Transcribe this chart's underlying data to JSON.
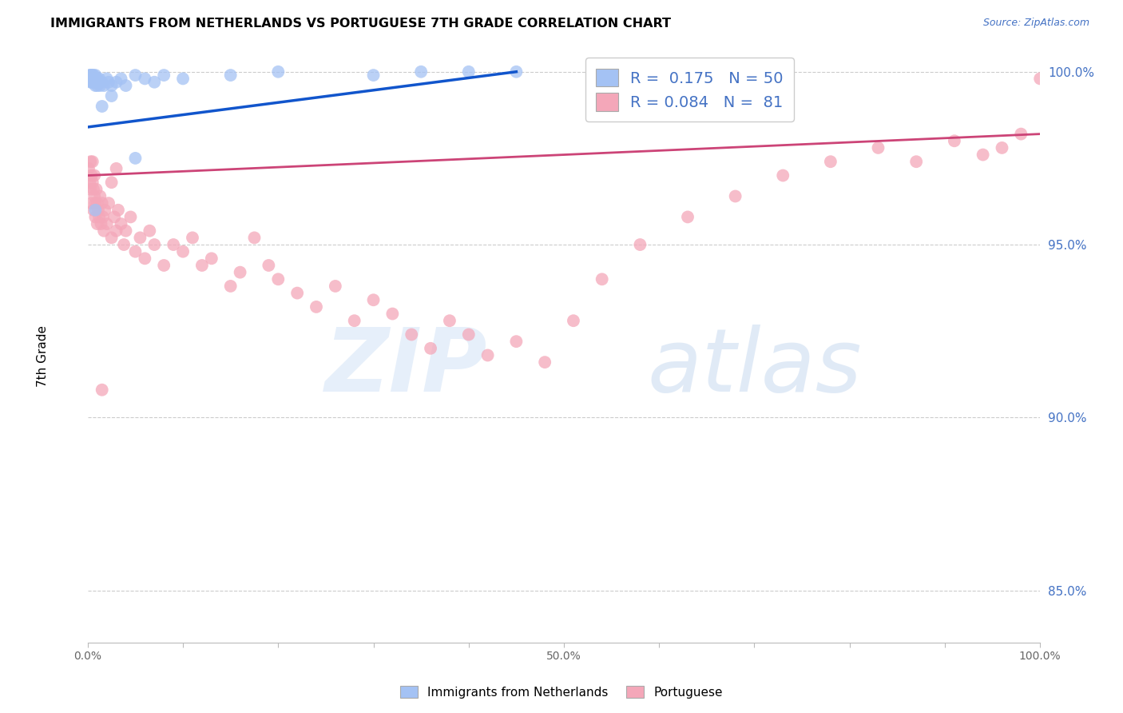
{
  "title": "IMMIGRANTS FROM NETHERLANDS VS PORTUGUESE 7TH GRADE CORRELATION CHART",
  "source": "Source: ZipAtlas.com",
  "ylabel": "7th Grade",
  "xlim": [
    0,
    1.0
  ],
  "ylim": [
    0.835,
    1.008
  ],
  "y_ticks": [
    0.85,
    0.9,
    0.95,
    1.0
  ],
  "y_tick_labels": [
    "85.0%",
    "90.0%",
    "95.0%",
    "100.0%"
  ],
  "x_ticks": [
    0.0,
    0.1,
    0.2,
    0.3,
    0.4,
    0.5,
    0.6,
    0.7,
    0.8,
    0.9,
    1.0
  ],
  "x_tick_labels": [
    "0.0%",
    "",
    "",
    "",
    "",
    "50.0%",
    "",
    "",
    "",
    "",
    "100.0%"
  ],
  "blue_color": "#a4c2f4",
  "pink_color": "#f4a7b9",
  "blue_line_color": "#1155cc",
  "pink_line_color": "#cc4477",
  "legend_R_blue": "0.175",
  "legend_N_blue": "50",
  "legend_R_pink": "0.084",
  "legend_N_pink": "81",
  "blue_x": [
    0.001,
    0.002,
    0.002,
    0.003,
    0.003,
    0.003,
    0.004,
    0.004,
    0.004,
    0.005,
    0.005,
    0.005,
    0.006,
    0.006,
    0.006,
    0.007,
    0.007,
    0.008,
    0.008,
    0.008,
    0.009,
    0.009,
    0.01,
    0.01,
    0.011,
    0.012,
    0.013,
    0.015,
    0.017,
    0.02,
    0.022,
    0.025,
    0.03,
    0.035,
    0.04,
    0.05,
    0.06,
    0.08,
    0.1,
    0.15,
    0.2,
    0.3,
    0.35,
    0.4,
    0.05,
    0.07,
    0.025,
    0.015,
    0.008,
    0.45
  ],
  "blue_y": [
    0.998,
    0.999,
    0.998,
    0.999,
    0.998,
    0.997,
    0.999,
    0.998,
    0.997,
    0.999,
    0.998,
    0.997,
    0.998,
    0.999,
    0.997,
    0.998,
    0.997,
    0.999,
    0.998,
    0.996,
    0.998,
    0.997,
    0.998,
    0.996,
    0.997,
    0.998,
    0.996,
    0.997,
    0.996,
    0.998,
    0.997,
    0.996,
    0.997,
    0.998,
    0.996,
    0.999,
    0.998,
    0.999,
    0.998,
    0.999,
    1.0,
    0.999,
    1.0,
    1.0,
    0.975,
    0.997,
    0.993,
    0.99,
    0.96,
    1.0
  ],
  "pink_x": [
    0.001,
    0.002,
    0.003,
    0.003,
    0.004,
    0.004,
    0.005,
    0.005,
    0.006,
    0.006,
    0.007,
    0.007,
    0.008,
    0.008,
    0.009,
    0.01,
    0.01,
    0.011,
    0.012,
    0.013,
    0.014,
    0.015,
    0.016,
    0.017,
    0.018,
    0.02,
    0.022,
    0.025,
    0.025,
    0.028,
    0.03,
    0.032,
    0.035,
    0.038,
    0.04,
    0.045,
    0.05,
    0.055,
    0.06,
    0.065,
    0.07,
    0.08,
    0.09,
    0.1,
    0.11,
    0.12,
    0.13,
    0.15,
    0.16,
    0.175,
    0.19,
    0.2,
    0.22,
    0.24,
    0.26,
    0.28,
    0.3,
    0.32,
    0.34,
    0.36,
    0.38,
    0.4,
    0.42,
    0.45,
    0.48,
    0.51,
    0.54,
    0.58,
    0.63,
    0.68,
    0.73,
    0.78,
    0.83,
    0.87,
    0.91,
    0.94,
    0.96,
    0.98,
    1.0,
    0.03,
    0.015
  ],
  "pink_y": [
    0.972,
    0.968,
    0.974,
    0.966,
    0.97,
    0.962,
    0.968,
    0.974,
    0.966,
    0.96,
    0.97,
    0.964,
    0.962,
    0.958,
    0.966,
    0.962,
    0.956,
    0.96,
    0.958,
    0.964,
    0.956,
    0.962,
    0.958,
    0.954,
    0.96,
    0.956,
    0.962,
    0.968,
    0.952,
    0.958,
    0.954,
    0.96,
    0.956,
    0.95,
    0.954,
    0.958,
    0.948,
    0.952,
    0.946,
    0.954,
    0.95,
    0.944,
    0.95,
    0.948,
    0.952,
    0.944,
    0.946,
    0.938,
    0.942,
    0.952,
    0.944,
    0.94,
    0.936,
    0.932,
    0.938,
    0.928,
    0.934,
    0.93,
    0.924,
    0.92,
    0.928,
    0.924,
    0.918,
    0.922,
    0.916,
    0.928,
    0.94,
    0.95,
    0.958,
    0.964,
    0.97,
    0.974,
    0.978,
    0.974,
    0.98,
    0.976,
    0.978,
    0.982,
    0.998,
    0.972,
    0.908
  ],
  "blue_trend_x": [
    0.0,
    0.45
  ],
  "blue_trend_y": [
    0.984,
    1.0
  ],
  "pink_trend_x": [
    0.0,
    1.0
  ],
  "pink_trend_y": [
    0.97,
    0.982
  ]
}
